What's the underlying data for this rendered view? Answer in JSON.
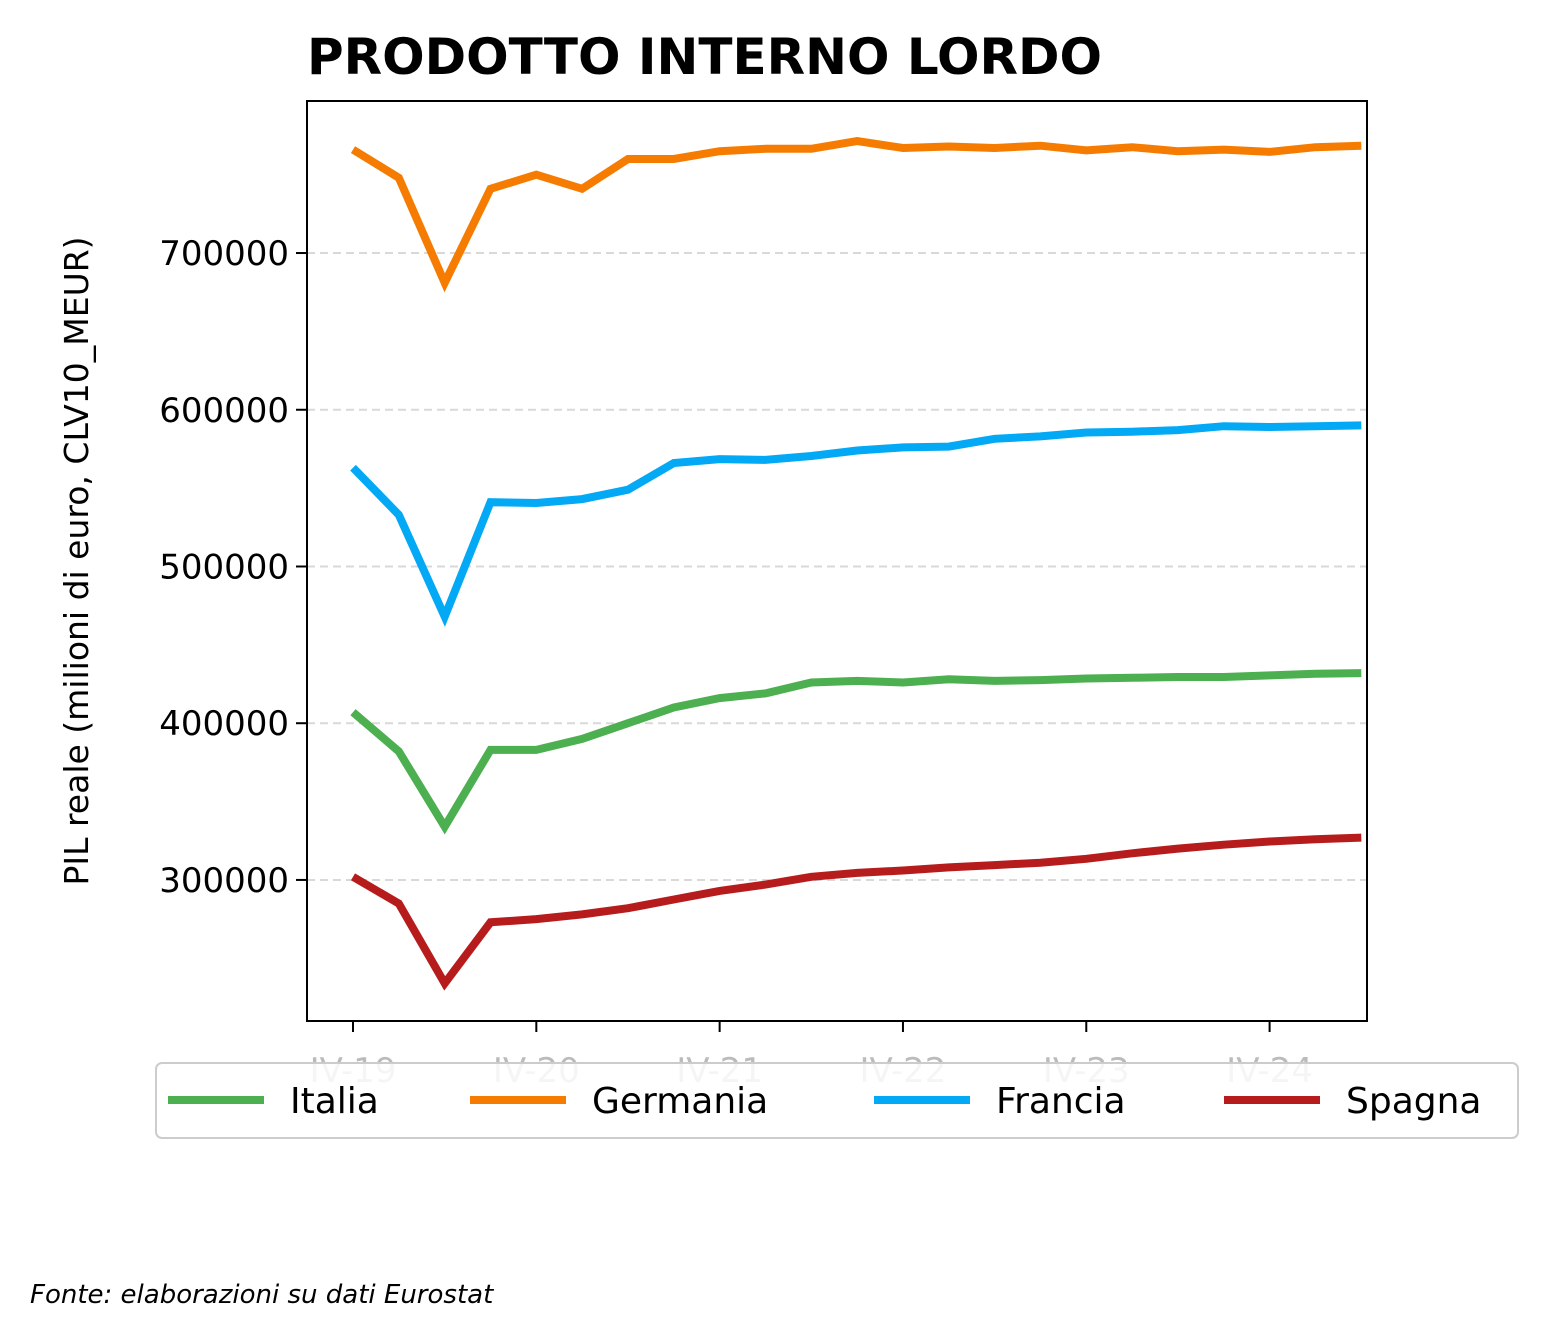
{
  "chart_data": {
    "type": "line",
    "title": "PRODOTTO INTERNO LORDO",
    "ylabel": "PIL reale (milioni di euro, CLV10_MEUR)",
    "xlabel": "",
    "x": [
      "2019-Q4",
      "2020-Q1",
      "2020-Q2",
      "2020-Q3",
      "2020-Q4",
      "2021-Q1",
      "2021-Q2",
      "2021-Q3",
      "2021-Q4",
      "2022-Q1",
      "2022-Q2",
      "2022-Q3",
      "2022-Q4",
      "2023-Q1",
      "2023-Q2",
      "2023-Q3",
      "2023-Q4",
      "2024-Q1",
      "2024-Q2",
      "2024-Q3",
      "2024-Q4",
      "2025-Q1",
      "2025-Q2"
    ],
    "x_tick_labels": [
      "IV-19",
      "IV-20",
      "IV-21",
      "IV-22",
      "IV-23",
      "IV-24"
    ],
    "y_ticks": [
      300000,
      400000,
      500000,
      600000,
      700000
    ],
    "ylim": [
      210000,
      797000
    ],
    "grid": "y-dashed",
    "legend_position": "below",
    "series": [
      {
        "name": "Italia",
        "color": "#4caf50",
        "values": [
          407000,
          382000,
          334000,
          383000,
          383000,
          390000,
          400000,
          410000,
          416000,
          419000,
          426000,
          427000,
          426000,
          428000,
          427000,
          427500,
          428500,
          429000,
          429500,
          429500,
          430500,
          431500,
          432000
        ]
      },
      {
        "name": "Germania",
        "color": "#f57c00",
        "values": [
          766000,
          748000,
          681000,
          741000,
          750000,
          741000,
          760000,
          760000,
          765000,
          766500,
          766500,
          771500,
          767000,
          768000,
          767000,
          768500,
          765500,
          767500,
          765000,
          766000,
          764500,
          767500,
          768500
        ]
      },
      {
        "name": "Francia",
        "color": "#03a9f4",
        "values": [
          563000,
          533000,
          468000,
          541000,
          540500,
          543000,
          549000,
          566000,
          568500,
          568000,
          570500,
          574000,
          576000,
          576500,
          581500,
          583000,
          585500,
          586000,
          587000,
          589500,
          589000,
          589500,
          590000
        ]
      },
      {
        "name": "Spagna",
        "color": "#b71c1c",
        "values": [
          302000,
          285000,
          234000,
          273000,
          275000,
          278000,
          282000,
          287500,
          293000,
          297000,
          302000,
          304500,
          306000,
          308000,
          309500,
          311000,
          313500,
          317000,
          320000,
          322500,
          324500,
          326000,
          327000
        ]
      }
    ]
  },
  "source_note": "Fonte: elaborazioni su dati Eurostat"
}
